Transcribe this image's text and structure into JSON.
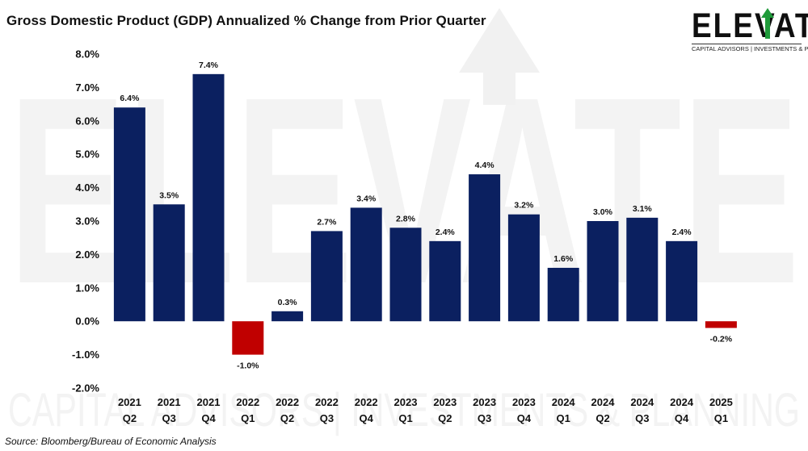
{
  "title": "Gross Domestic Product (GDP) Annualized % Change from Prior Quarter",
  "logo": {
    "word": "ELEVATE",
    "tagline": "CAPITAL ADVISORS | INVESTMENTS & PLANNING",
    "watermark_word": "ELEVATE",
    "watermark_tagline": "CAPITAL ADVISORS | INVESTMENTS & PLANNING",
    "arrow_color": "#1f9a3a"
  },
  "source": "Source: Bloomberg/Bureau of Economic Analysis",
  "colors": {
    "positive": "#0b2060",
    "negative": "#c00000",
    "text": "#111111"
  },
  "chart_data": {
    "type": "bar",
    "title": "Gross Domestic Product (GDP) Annualized % Change from Prior Quarter",
    "categories": [
      [
        "2021",
        "Q2"
      ],
      [
        "2021",
        "Q3"
      ],
      [
        "2021",
        "Q4"
      ],
      [
        "2022",
        "Q1"
      ],
      [
        "2022",
        "Q2"
      ],
      [
        "2022",
        "Q3"
      ],
      [
        "2022",
        "Q4"
      ],
      [
        "2023",
        "Q1"
      ],
      [
        "2023",
        "Q2"
      ],
      [
        "2023",
        "Q3"
      ],
      [
        "2023",
        "Q4"
      ],
      [
        "2024",
        "Q1"
      ],
      [
        "2024",
        "Q2"
      ],
      [
        "2024",
        "Q3"
      ],
      [
        "2024",
        "Q4"
      ],
      [
        "2025",
        "Q1"
      ]
    ],
    "values": [
      6.4,
      3.5,
      7.4,
      -1.0,
      0.3,
      2.7,
      3.4,
      2.8,
      2.4,
      4.4,
      3.2,
      1.6,
      3.0,
      3.1,
      2.4,
      -0.2
    ],
    "data_labels": [
      "6.4%",
      "3.5%",
      "7.4%",
      "-1.0%",
      "0.3%",
      "2.7%",
      "3.4%",
      "2.8%",
      "2.4%",
      "4.4%",
      "3.2%",
      "1.6%",
      "3.0%",
      "3.1%",
      "2.4%",
      "-0.2%"
    ],
    "ylim": [
      -2.0,
      8.0
    ],
    "yticks": [
      8.0,
      7.0,
      6.0,
      5.0,
      4.0,
      3.0,
      2.0,
      1.0,
      0.0,
      -1.0,
      -2.0
    ],
    "ytick_labels": [
      "8.0%",
      "7.0%",
      "6.0%",
      "5.0%",
      "4.0%",
      "3.0%",
      "2.0%",
      "1.0%",
      "0.0%",
      "-1.0%",
      "-2.0%"
    ],
    "xlabel": "",
    "ylabel": "",
    "grid": false,
    "legend": "none"
  }
}
